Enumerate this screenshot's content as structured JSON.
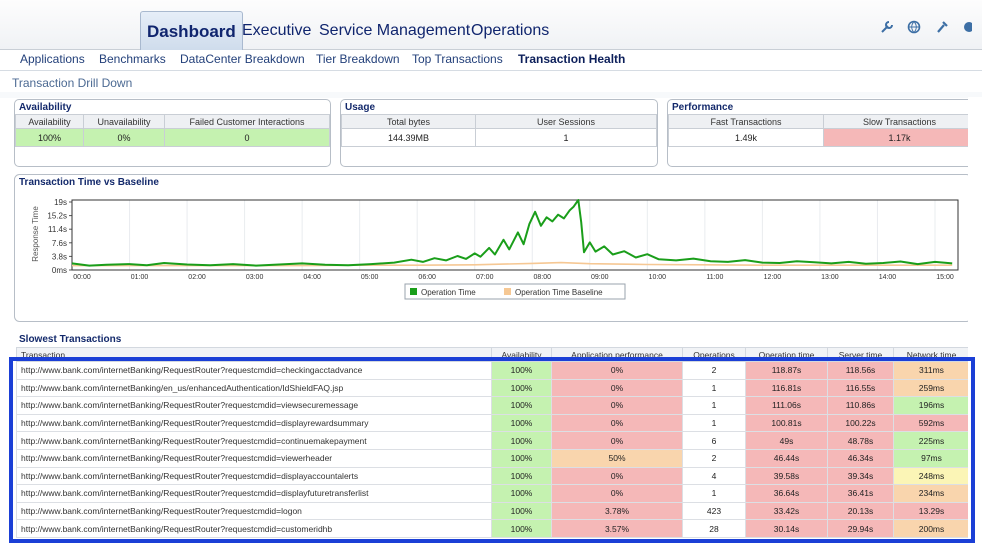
{
  "topnav": {
    "tabs": [
      {
        "label": "Dashboard",
        "active": true
      },
      {
        "label": "Executive",
        "active": false
      },
      {
        "label": "Service Management",
        "active": false
      },
      {
        "label": "Operations",
        "active": false
      }
    ],
    "icons": [
      "tools-icon",
      "globe-icon",
      "wrench-icon",
      "help-icon"
    ]
  },
  "subnav": {
    "items": [
      {
        "label": "Applications",
        "active": false
      },
      {
        "label": "Benchmarks",
        "active": false
      },
      {
        "label": "DataCenter Breakdown",
        "active": false
      },
      {
        "label": "Tier Breakdown",
        "active": false
      },
      {
        "label": "Top Transactions",
        "active": false
      },
      {
        "label": "Transaction Health",
        "active": true
      }
    ]
  },
  "breadcrumb": "Transaction Drill Down",
  "availability": {
    "title": "Availability",
    "headers": [
      "Availability",
      "Unavailability",
      "Failed Customer Interactions"
    ],
    "values": [
      "100%",
      "0%",
      "0"
    ]
  },
  "usage": {
    "title": "Usage",
    "headers": [
      "Total bytes",
      "User Sessions"
    ],
    "values": [
      "144.39MB",
      "1"
    ]
  },
  "performance": {
    "title": "Performance",
    "headers": [
      "Fast Transactions",
      "Slow Transactions"
    ],
    "values": [
      "1.49k",
      "1.17k"
    ]
  },
  "colors": {
    "green": "#c5f2b0",
    "red": "#f5b8b8",
    "orange": "#f9d5ad",
    "yellow": "#fbf5b6",
    "series_operation": "#1a9e1a",
    "series_baseline": "#f6c894",
    "highlight": "#1b3fd6"
  },
  "chart_data": {
    "type": "line",
    "title": "Transaction Time vs Baseline",
    "ylabel": "Response Time",
    "xlabel": "",
    "yticks": [
      "19s",
      "15.2s",
      "11.4s",
      "7.6s",
      "3.8s",
      "0ms"
    ],
    "ylim": [
      0,
      19
    ],
    "xticks": [
      "00:00",
      "01:00",
      "02:00",
      "03:00",
      "04:00",
      "05:00",
      "06:00",
      "07:00",
      "08:00",
      "09:00",
      "10:00",
      "11:00",
      "12:00",
      "13:00",
      "14:00",
      "15:00"
    ],
    "xlim": [
      0,
      15.4
    ],
    "legend_position": "bottom",
    "series": [
      {
        "name": "Operation Time",
        "x": [
          0,
          0.3,
          0.6,
          1.0,
          1.3,
          1.6,
          2.0,
          2.4,
          2.8,
          3.2,
          3.6,
          4.0,
          4.4,
          4.8,
          5.2,
          5.6,
          5.9,
          6.1,
          6.3,
          6.5,
          6.7,
          6.85,
          7.0,
          7.1,
          7.25,
          7.35,
          7.5,
          7.6,
          7.75,
          7.85,
          7.95,
          8.05,
          8.15,
          8.25,
          8.35,
          8.45,
          8.55,
          8.65,
          8.72,
          8.8,
          8.85,
          8.9,
          9.0,
          9.1,
          9.25,
          9.4,
          9.6,
          9.8,
          10.0,
          10.2,
          10.5,
          10.8,
          11.1,
          11.4,
          11.7,
          12.0,
          12.3,
          12.6,
          12.9,
          13.2,
          13.5,
          13.8,
          14.1,
          14.4,
          14.7,
          15.0,
          15.3
        ],
        "values": [
          1.8,
          1.2,
          1.4,
          1.6,
          1.3,
          1.9,
          1.5,
          1.3,
          1.6,
          1.2,
          1.5,
          1.8,
          1.4,
          1.3,
          1.6,
          2.0,
          2.8,
          2.2,
          3.2,
          2.6,
          3.8,
          3.0,
          4.5,
          3.6,
          6.0,
          4.2,
          8.2,
          5.6,
          10.2,
          7.0,
          12.5,
          15.8,
          12.0,
          14.3,
          13.2,
          15.0,
          14.0,
          16.2,
          17.2,
          19.0,
          13.0,
          4.8,
          7.5,
          5.0,
          6.4,
          4.2,
          5.1,
          3.4,
          4.3,
          2.9,
          2.6,
          3.1,
          2.4,
          2.2,
          2.7,
          2.0,
          1.9,
          2.4,
          2.1,
          1.8,
          2.2,
          1.7,
          1.9,
          2.3,
          1.6,
          2.2,
          1.8
        ]
      },
      {
        "name": "Operation Time Baseline",
        "x": [
          0,
          1.0,
          2.0,
          3.0,
          4.0,
          5.0,
          6.0,
          7.0,
          7.5,
          8.0,
          8.5,
          9.0,
          10.0,
          11.0,
          12.0,
          13.0,
          14.0,
          15.3
        ],
        "values": [
          1.2,
          1.2,
          1.2,
          1.2,
          1.2,
          1.3,
          1.3,
          1.4,
          1.6,
          1.8,
          2.0,
          1.7,
          1.5,
          1.4,
          1.3,
          1.3,
          1.3,
          1.3
        ]
      }
    ]
  },
  "slowest": {
    "title": "Slowest Transactions",
    "columns": [
      "Transaction",
      "Availability",
      "Application performance",
      "Operations",
      "Operation time",
      "Server time",
      "Network time"
    ],
    "rows": [
      {
        "url": "http://www.bank.com/internetBanking/RequestRouter?requestcmdid=checkingacctadvance",
        "avail": "100%",
        "app": "0%",
        "ops": "2",
        "op_time": "118.87s",
        "server": "118.56s",
        "network": "311ms",
        "app_color": "red",
        "net_color": "orange"
      },
      {
        "url": "http://www.bank.com/internetBanking/en_us/enhancedAuthentication/IdShieldFAQ.jsp",
        "avail": "100%",
        "app": "0%",
        "ops": "1",
        "op_time": "116.81s",
        "server": "116.55s",
        "network": "259ms",
        "app_color": "red",
        "net_color": "orange"
      },
      {
        "url": "http://www.bank.com/internetBanking/RequestRouter?requestcmdid=viewsecuremessage",
        "avail": "100%",
        "app": "0%",
        "ops": "1",
        "op_time": "111.06s",
        "server": "110.86s",
        "network": "196ms",
        "app_color": "red",
        "net_color": "green"
      },
      {
        "url": "http://www.bank.com/internetBanking/RequestRouter?requestcmdid=displayrewardsummary",
        "avail": "100%",
        "app": "0%",
        "ops": "1",
        "op_time": "100.81s",
        "server": "100.22s",
        "network": "592ms",
        "app_color": "red",
        "net_color": "red"
      },
      {
        "url": "http://www.bank.com/internetBanking/RequestRouter?requestcmdid=continuemakepayment",
        "avail": "100%",
        "app": "0%",
        "ops": "6",
        "op_time": "49s",
        "server": "48.78s",
        "network": "225ms",
        "app_color": "red",
        "net_color": "green"
      },
      {
        "url": "http://www.bank.com/internetBanking/RequestRouter?requestcmdid=viewerheader",
        "avail": "100%",
        "app": "50%",
        "ops": "2",
        "op_time": "46.44s",
        "server": "46.34s",
        "network": "97ms",
        "app_color": "orange",
        "net_color": "green"
      },
      {
        "url": "http://www.bank.com/internetBanking/RequestRouter?requestcmdid=displayaccountalerts",
        "avail": "100%",
        "app": "0%",
        "ops": "4",
        "op_time": "39.58s",
        "server": "39.34s",
        "network": "248ms",
        "app_color": "red",
        "net_color": "yellow"
      },
      {
        "url": "http://www.bank.com/internetBanking/RequestRouter?requestcmdid=displayfuturetransferlist",
        "avail": "100%",
        "app": "0%",
        "ops": "1",
        "op_time": "36.64s",
        "server": "36.41s",
        "network": "234ms",
        "app_color": "red",
        "net_color": "orange"
      },
      {
        "url": "http://www.bank.com/internetBanking/RequestRouter?requestcmdid=logon",
        "avail": "100%",
        "app": "3.78%",
        "ops": "423",
        "op_time": "33.42s",
        "server": "20.13s",
        "network": "13.29s",
        "app_color": "red",
        "net_color": "red"
      },
      {
        "url": "http://www.bank.com/internetBanking/RequestRouter?requestcmdid=customeridhb",
        "avail": "100%",
        "app": "3.57%",
        "ops": "28",
        "op_time": "30.14s",
        "server": "29.94s",
        "network": "200ms",
        "app_color": "red",
        "net_color": "orange"
      }
    ]
  }
}
